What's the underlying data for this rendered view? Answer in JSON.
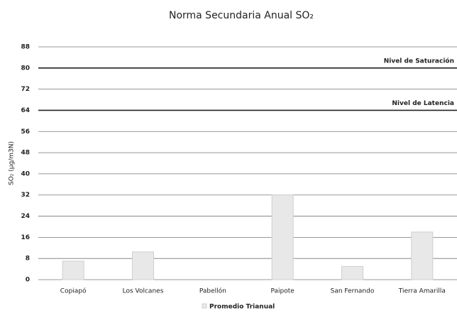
{
  "chart_data": {
    "type": "bar",
    "title": "Norma Secundaria Anual SO₂",
    "y_label": "SO₂ (µg/m3N)",
    "categories": [
      "Copiapó",
      "Los Volcanes",
      "Pabellón",
      "Paipote",
      "San Fernando",
      "Tierra Amarilla"
    ],
    "series": [
      {
        "name": "Promedio Trianual",
        "color": "#e8e8e8",
        "values": [
          7,
          10.5,
          0,
          32,
          5,
          18
        ]
      }
    ],
    "ylim": [
      0,
      88
    ],
    "yticks": [
      0,
      8,
      16,
      24,
      32,
      40,
      48,
      56,
      64,
      72,
      80,
      88
    ],
    "grid": true,
    "reference_lines": [
      {
        "label": "Nivel de Saturación",
        "value": 80
      },
      {
        "label": "Nivel de Latencia",
        "value": 64
      }
    ],
    "legend": "bottom"
  }
}
